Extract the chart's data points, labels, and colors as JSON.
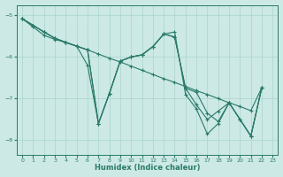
{
  "xlabel": "Humidex (Indice chaleur)",
  "background_color": "#cce9e5",
  "grid_color": "#aad4cf",
  "line_color": "#2a7a6a",
  "xlim": [
    -0.5,
    23.5
  ],
  "ylim": [
    -8.35,
    -4.75
  ],
  "yticks": [
    -8,
    -7,
    -6,
    -5
  ],
  "xticks": [
    0,
    1,
    2,
    3,
    4,
    5,
    6,
    7,
    8,
    9,
    10,
    11,
    12,
    13,
    14,
    15,
    16,
    17,
    18,
    19,
    20,
    21,
    22,
    23
  ],
  "line1_x": [
    0,
    1,
    2,
    3,
    4,
    5,
    6,
    7,
    8,
    9,
    10,
    11,
    12,
    13,
    14,
    15,
    16,
    17,
    18,
    19,
    20,
    21,
    22
  ],
  "line1_y": [
    -5.08,
    -5.24,
    -5.4,
    -5.55,
    -5.65,
    -5.74,
    -5.83,
    -5.93,
    -6.03,
    -6.12,
    -6.22,
    -6.32,
    -6.42,
    -6.52,
    -6.61,
    -6.71,
    -6.81,
    -6.9,
    -7.0,
    -7.1,
    -7.19,
    -7.29,
    -6.74
  ],
  "line2_x": [
    0,
    1,
    2,
    3,
    4,
    5,
    6,
    7,
    8,
    9,
    10,
    11,
    12,
    13,
    14,
    15,
    16,
    17,
    18,
    19,
    20,
    21,
    22
  ],
  "line2_y": [
    -5.08,
    -5.24,
    -5.4,
    -5.55,
    -5.65,
    -5.74,
    -5.83,
    -7.6,
    -6.88,
    -6.1,
    -6.0,
    -5.95,
    -5.75,
    -5.45,
    -5.52,
    -6.75,
    -6.85,
    -7.35,
    -7.55,
    -7.1,
    -7.5,
    -7.9,
    -6.74
  ],
  "line3_x": [
    0,
    1,
    2,
    3,
    4,
    5,
    6,
    7,
    8,
    9,
    10,
    11,
    12,
    13,
    14,
    15,
    16,
    17,
    18,
    19,
    20,
    21,
    22
  ],
  "line3_y": [
    -5.08,
    -5.24,
    -5.4,
    -5.55,
    -5.65,
    -5.74,
    -6.2,
    -7.6,
    -6.88,
    -6.1,
    -6.0,
    -5.95,
    -5.75,
    -5.45,
    -5.52,
    -6.75,
    -7.15,
    -7.5,
    -7.3,
    -7.1,
    -7.5,
    -7.9,
    -6.74
  ],
  "line4_x": [
    0,
    1,
    2,
    3,
    4,
    5,
    6,
    7,
    8,
    9,
    10,
    11,
    12,
    13,
    14,
    15,
    16,
    17,
    18,
    19,
    20,
    21,
    22
  ],
  "line4_y": [
    -5.08,
    -5.28,
    -5.48,
    -5.58,
    -5.65,
    -5.74,
    -5.83,
    -7.6,
    -6.88,
    -6.1,
    -6.0,
    -5.95,
    -5.75,
    -5.45,
    -5.4,
    -6.9,
    -7.25,
    -7.85,
    -7.6,
    -7.1,
    -7.5,
    -7.9,
    -6.74
  ]
}
